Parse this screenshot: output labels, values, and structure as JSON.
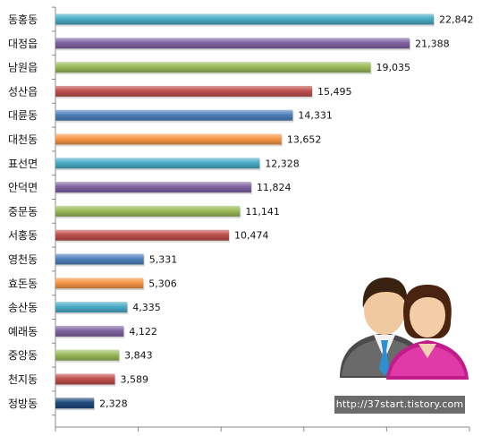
{
  "chart_data": {
    "type": "bar",
    "orientation": "horizontal",
    "categories": [
      "동홍동",
      "대정읍",
      "남원읍",
      "성산읍",
      "대륜동",
      "대천동",
      "표선면",
      "안덕면",
      "중문동",
      "서홍동",
      "영천동",
      "효돈동",
      "송산동",
      "예래동",
      "중앙동",
      "천지동",
      "정방동"
    ],
    "values": [
      22842,
      21388,
      19035,
      15495,
      14331,
      13652,
      12328,
      11824,
      11141,
      10474,
      5331,
      5306,
      4335,
      4122,
      3843,
      3589,
      2328
    ],
    "value_labels": [
      "22,842",
      "21,388",
      "19,035",
      "15,495",
      "14,331",
      "13,652",
      "12,328",
      "11,824",
      "11,141",
      "10,474",
      "5,331",
      "5,306",
      "4,335",
      "4,122",
      "3,843",
      "3,589",
      "2,328"
    ],
    "colors": [
      "#4bacc6",
      "#8064a2",
      "#9bbb59",
      "#c0504d",
      "#4f81bd",
      "#f79646",
      "#4bacc6",
      "#8064a2",
      "#9bbb59",
      "#c0504d",
      "#4f81bd",
      "#f79646",
      "#4bacc6",
      "#8064a2",
      "#9bbb59",
      "#c0504d",
      "#1f497d"
    ],
    "xlim": [
      0,
      25000
    ],
    "title": "",
    "xlabel": "",
    "ylabel": "",
    "legend": "none"
  },
  "watermark": {
    "text": "http://37start.tistory.com"
  },
  "icons": {
    "illustration": "people-couple-icon"
  }
}
